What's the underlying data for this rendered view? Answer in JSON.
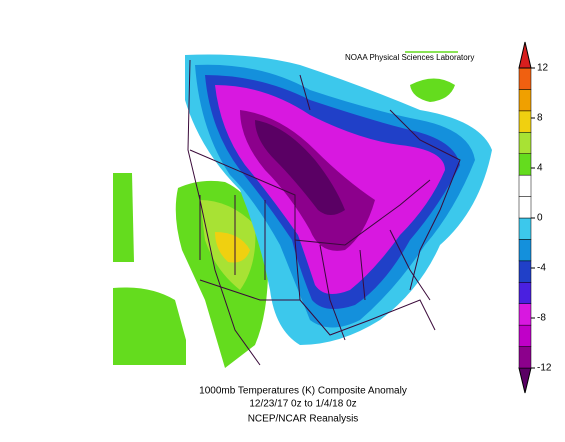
{
  "header": {
    "title": "NOAA Physical Sciences Laboratory"
  },
  "caption": {
    "line1": "1000mb Temperatures (K)    Composite Anomaly",
    "line2": "12/23/17 0z   to 1/4/18 0z",
    "line3": "NCEP/NCAR Reanalysis"
  },
  "colorbar": {
    "ticks": [
      -12,
      -8,
      -4,
      0,
      4,
      8,
      12
    ],
    "colors": [
      "#5a0064",
      "#8c008c",
      "#c000c8",
      "#d818e0",
      "#4a20e0",
      "#2040c8",
      "#1490dc",
      "#3cc8ec",
      "#ffffff",
      "#ffffff",
      "#64dc1e",
      "#a8e234",
      "#f0d010",
      "#f0a000",
      "#f06010",
      "#d81e1e"
    ]
  }
}
